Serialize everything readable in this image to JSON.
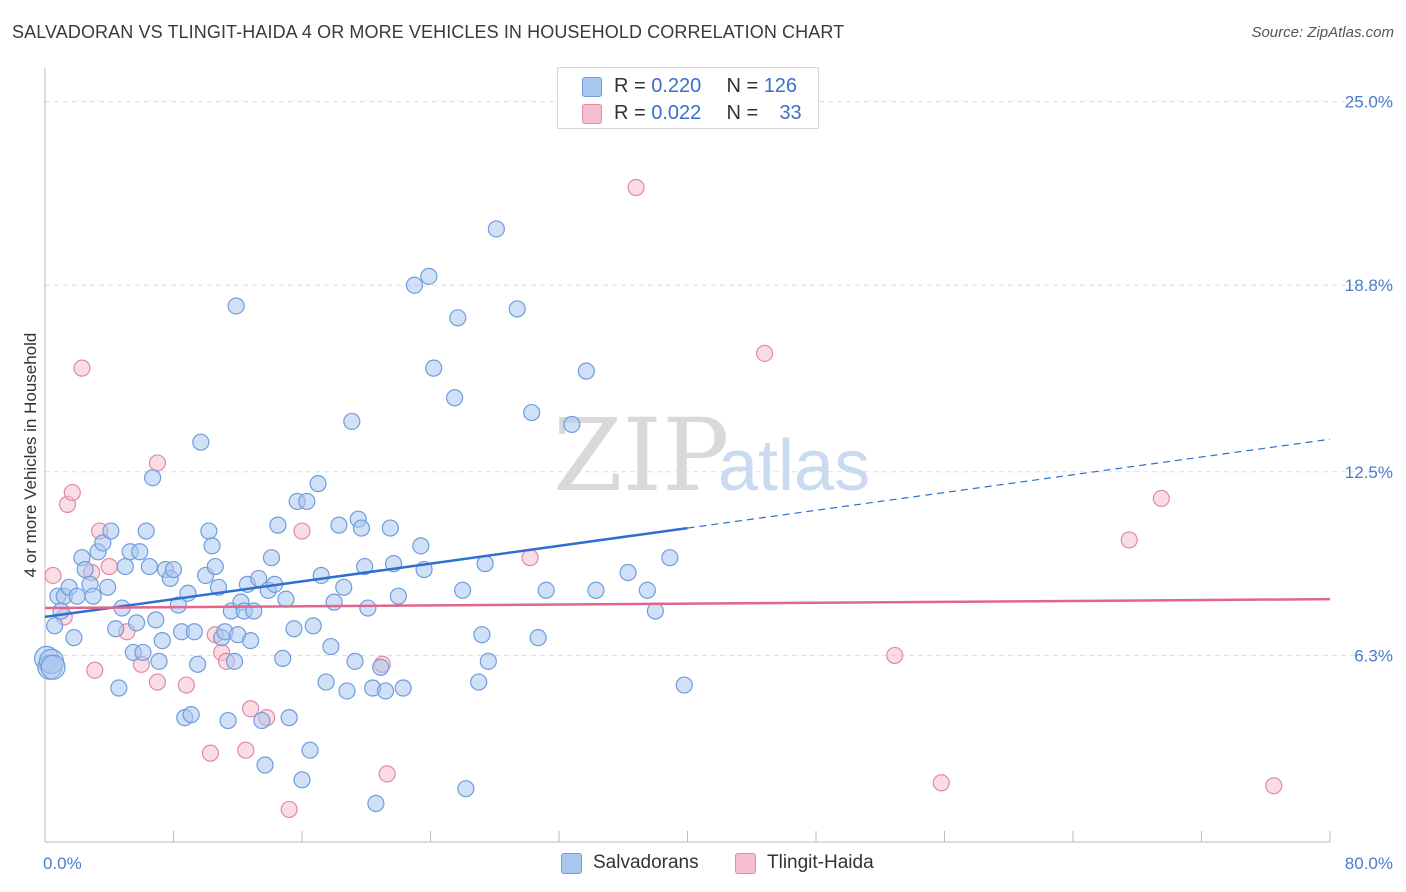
{
  "header": {
    "title": "SALVADORAN VS TLINGIT-HAIDA 4 OR MORE VEHICLES IN HOUSEHOLD CORRELATION CHART",
    "source": "Source: ZipAtlas.com"
  },
  "watermark": {
    "part1": "ZIP",
    "part2": "atlas"
  },
  "legend": {
    "rows": [
      {
        "r_label": "R = ",
        "r_value": "0.220",
        "n_label": "N = ",
        "n_value": "126"
      },
      {
        "r_label": "R = ",
        "r_value": "0.022",
        "n_label": "N = ",
        "n_value": "33"
      }
    ]
  },
  "colors": {
    "blue_fill": "#a9c6ef",
    "blue_stroke": "#6f9ddc",
    "blue_line": "#2f6fd0",
    "pink_fill": "#f5bfd0",
    "pink_stroke": "#e08aa6",
    "pink_line": "#e0668e",
    "grid": "#dddddd",
    "axis_label": "#4a7ccc"
  },
  "chart_data": {
    "type": "scatter",
    "title": "SALVADORAN VS TLINGIT-HAIDA 4 OR MORE VEHICLES IN HOUSEHOLD CORRELATION CHART",
    "xlabel": "",
    "ylabel": "4 or more Vehicles in Household",
    "xlim": [
      0,
      80
    ],
    "ylim": [
      0,
      26
    ],
    "x_tick_labels": [
      "0.0%",
      "80.0%"
    ],
    "y_ticks": [
      6.3,
      12.5,
      18.8,
      25.0
    ],
    "y_tick_labels": [
      "6.3%",
      "12.5%",
      "18.8%",
      "25.0%"
    ],
    "grid": true,
    "legend_position": "bottom-center",
    "series": [
      {
        "name": "Salvadorans",
        "color": "#a9c6ef",
        "trend": {
          "x0": 0,
          "y0": 7.6,
          "x1": 40,
          "y1": 10.6,
          "dashed_to_x": 80,
          "dashed_to_y": 13.6
        },
        "points": [
          [
            0.1,
            6.2
          ],
          [
            0.3,
            5.9
          ],
          [
            0.4,
            6.1
          ],
          [
            0.6,
            7.3
          ],
          [
            0.8,
            8.3
          ],
          [
            1.0,
            7.8
          ],
          [
            1.2,
            8.3
          ],
          [
            1.5,
            8.6
          ],
          [
            1.8,
            6.9
          ],
          [
            2.0,
            8.3
          ],
          [
            2.3,
            9.6
          ],
          [
            2.5,
            9.2
          ],
          [
            2.8,
            8.7
          ],
          [
            3.0,
            8.3
          ],
          [
            3.3,
            9.8
          ],
          [
            3.6,
            10.1
          ],
          [
            3.9,
            8.6
          ],
          [
            4.1,
            10.5
          ],
          [
            4.4,
            7.2
          ],
          [
            4.6,
            5.2
          ],
          [
            4.8,
            7.9
          ],
          [
            5.0,
            9.3
          ],
          [
            5.3,
            9.8
          ],
          [
            5.5,
            6.4
          ],
          [
            5.7,
            7.4
          ],
          [
            5.9,
            9.8
          ],
          [
            6.1,
            6.4
          ],
          [
            6.3,
            10.5
          ],
          [
            6.5,
            9.3
          ],
          [
            6.7,
            12.3
          ],
          [
            6.9,
            7.5
          ],
          [
            7.1,
            6.1
          ],
          [
            7.3,
            6.8
          ],
          [
            7.5,
            9.2
          ],
          [
            7.8,
            8.9
          ],
          [
            8.0,
            9.2
          ],
          [
            8.3,
            8.0
          ],
          [
            8.5,
            7.1
          ],
          [
            8.7,
            4.2
          ],
          [
            8.9,
            8.4
          ],
          [
            9.1,
            4.3
          ],
          [
            9.3,
            7.1
          ],
          [
            9.5,
            6.0
          ],
          [
            9.7,
            13.5
          ],
          [
            10.0,
            9.0
          ],
          [
            10.2,
            10.5
          ],
          [
            10.4,
            10.0
          ],
          [
            10.6,
            9.3
          ],
          [
            10.8,
            8.6
          ],
          [
            11.0,
            6.9
          ],
          [
            11.2,
            7.1
          ],
          [
            11.4,
            4.1
          ],
          [
            11.6,
            7.8
          ],
          [
            11.8,
            6.1
          ],
          [
            11.9,
            18.1
          ],
          [
            12.0,
            7.0
          ],
          [
            12.2,
            8.1
          ],
          [
            12.4,
            7.8
          ],
          [
            12.6,
            8.7
          ],
          [
            12.8,
            6.8
          ],
          [
            13.0,
            7.8
          ],
          [
            13.3,
            8.9
          ],
          [
            13.5,
            4.1
          ],
          [
            13.7,
            2.6
          ],
          [
            13.9,
            8.5
          ],
          [
            14.1,
            9.6
          ],
          [
            14.3,
            8.7
          ],
          [
            14.5,
            10.7
          ],
          [
            14.8,
            6.2
          ],
          [
            15.0,
            8.2
          ],
          [
            15.2,
            4.2
          ],
          [
            15.5,
            7.2
          ],
          [
            15.7,
            11.5
          ],
          [
            16.0,
            2.1
          ],
          [
            16.3,
            11.5
          ],
          [
            16.5,
            3.1
          ],
          [
            16.7,
            7.3
          ],
          [
            17.0,
            12.1
          ],
          [
            17.2,
            9.0
          ],
          [
            17.5,
            5.4
          ],
          [
            17.8,
            6.6
          ],
          [
            18.0,
            8.1
          ],
          [
            18.3,
            10.7
          ],
          [
            18.6,
            8.6
          ],
          [
            18.8,
            5.1
          ],
          [
            19.1,
            14.2
          ],
          [
            19.3,
            6.1
          ],
          [
            19.5,
            10.9
          ],
          [
            19.7,
            10.6
          ],
          [
            19.9,
            9.3
          ],
          [
            20.1,
            7.9
          ],
          [
            20.4,
            5.2
          ],
          [
            20.6,
            1.3
          ],
          [
            20.9,
            5.9
          ],
          [
            21.2,
            5.1
          ],
          [
            21.5,
            10.6
          ],
          [
            21.7,
            9.4
          ],
          [
            22.0,
            8.3
          ],
          [
            22.3,
            5.2
          ],
          [
            23.0,
            18.8
          ],
          [
            23.4,
            10.0
          ],
          [
            23.6,
            9.2
          ],
          [
            23.9,
            19.1
          ],
          [
            24.2,
            16.0
          ],
          [
            25.5,
            15.0
          ],
          [
            25.7,
            17.7
          ],
          [
            26.0,
            8.5
          ],
          [
            26.2,
            1.8
          ],
          [
            27.0,
            5.4
          ],
          [
            27.2,
            7.0
          ],
          [
            27.4,
            9.4
          ],
          [
            27.6,
            6.1
          ],
          [
            28.1,
            20.7
          ],
          [
            29.4,
            18.0
          ],
          [
            30.3,
            14.5
          ],
          [
            30.7,
            6.9
          ],
          [
            31.2,
            8.5
          ],
          [
            32.8,
            14.1
          ],
          [
            33.7,
            15.9
          ],
          [
            34.3,
            8.5
          ],
          [
            36.3,
            9.1
          ],
          [
            37.5,
            8.5
          ],
          [
            38.0,
            7.8
          ],
          [
            38.9,
            9.6
          ],
          [
            39.8,
            5.3
          ],
          [
            0.5,
            5.9
          ]
        ]
      },
      {
        "name": "Tlingit-Haida",
        "color": "#f5bfd0",
        "trend": {
          "x0": 0,
          "y0": 7.9,
          "x1": 80,
          "y1": 8.2
        },
        "points": [
          [
            0.5,
            9.0
          ],
          [
            1.2,
            7.6
          ],
          [
            1.4,
            11.4
          ],
          [
            1.7,
            11.8
          ],
          [
            2.3,
            16.0
          ],
          [
            2.9,
            9.1
          ],
          [
            3.1,
            5.8
          ],
          [
            3.4,
            10.5
          ],
          [
            4.0,
            9.3
          ],
          [
            5.1,
            7.1
          ],
          [
            6.0,
            6.0
          ],
          [
            7.0,
            12.8
          ],
          [
            7.0,
            5.4
          ],
          [
            8.8,
            5.3
          ],
          [
            10.3,
            3.0
          ],
          [
            10.6,
            7.0
          ],
          [
            11.0,
            6.4
          ],
          [
            11.3,
            6.1
          ],
          [
            12.5,
            3.1
          ],
          [
            12.8,
            4.5
          ],
          [
            13.8,
            4.2
          ],
          [
            15.2,
            1.1
          ],
          [
            16.0,
            10.5
          ],
          [
            21.0,
            6.0
          ],
          [
            21.3,
            2.3
          ],
          [
            30.2,
            9.6
          ],
          [
            36.8,
            22.1
          ],
          [
            44.8,
            16.5
          ],
          [
            52.9,
            6.3
          ],
          [
            55.8,
            2.0
          ],
          [
            67.5,
            10.2
          ],
          [
            69.5,
            11.6
          ],
          [
            76.5,
            1.9
          ]
        ]
      }
    ]
  },
  "bottom_legend": {
    "items": [
      {
        "label": "Salvadorans"
      },
      {
        "label": "Tlingit-Haida"
      }
    ]
  },
  "y_axis_title": "4 or more Vehicles in Household"
}
